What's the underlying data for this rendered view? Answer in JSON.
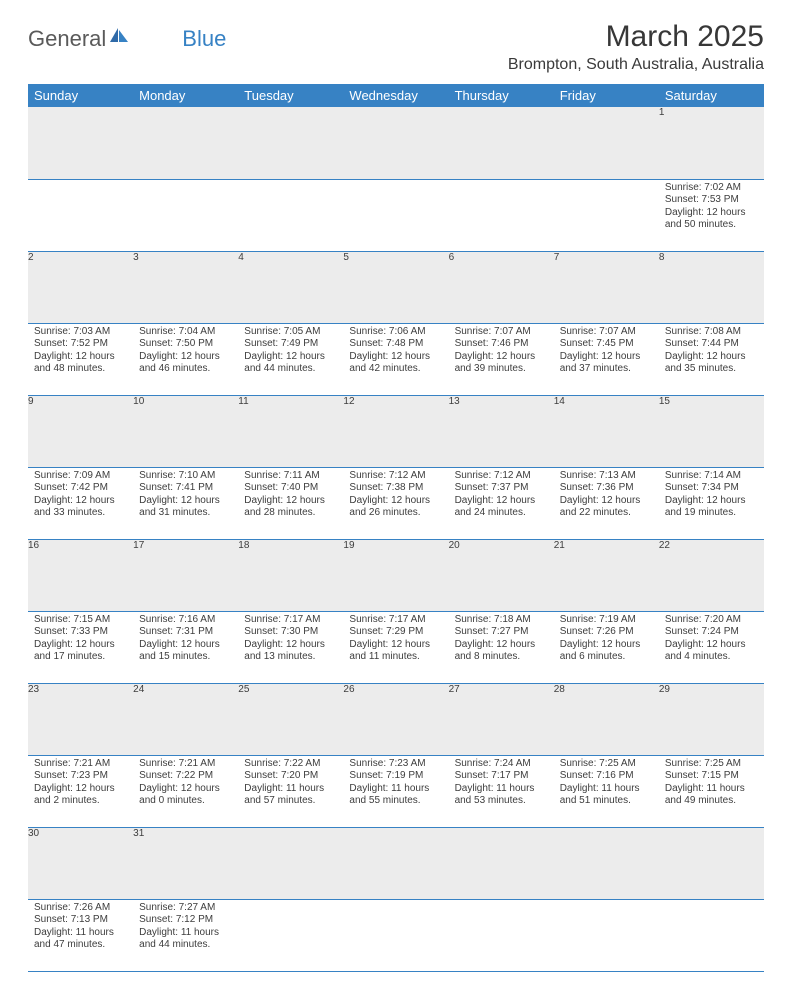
{
  "logo": {
    "part1": "General",
    "part2": "Blue"
  },
  "title": "March 2025",
  "location": "Brompton, South Australia, Australia",
  "colors": {
    "header_bg": "#3782c4",
    "header_text": "#ffffff",
    "daynum_bg": "#ececec",
    "row_border": "#3782c4",
    "text": "#3d3d3d",
    "logo_gray": "#5a5a5a",
    "logo_blue": "#3782c4"
  },
  "fonts": {
    "title_pt": 30,
    "location_pt": 16,
    "dayhdr_pt": 13,
    "daynum_pt": 11,
    "cell_pt": 10
  },
  "day_headers": [
    "Sunday",
    "Monday",
    "Tuesday",
    "Wednesday",
    "Thursday",
    "Friday",
    "Saturday"
  ],
  "weeks": [
    [
      null,
      null,
      null,
      null,
      null,
      null,
      {
        "n": "1",
        "sr": "7:02 AM",
        "ss": "7:53 PM",
        "dl": "12 hours and 50 minutes."
      }
    ],
    [
      {
        "n": "2",
        "sr": "7:03 AM",
        "ss": "7:52 PM",
        "dl": "12 hours and 48 minutes."
      },
      {
        "n": "3",
        "sr": "7:04 AM",
        "ss": "7:50 PM",
        "dl": "12 hours and 46 minutes."
      },
      {
        "n": "4",
        "sr": "7:05 AM",
        "ss": "7:49 PM",
        "dl": "12 hours and 44 minutes."
      },
      {
        "n": "5",
        "sr": "7:06 AM",
        "ss": "7:48 PM",
        "dl": "12 hours and 42 minutes."
      },
      {
        "n": "6",
        "sr": "7:07 AM",
        "ss": "7:46 PM",
        "dl": "12 hours and 39 minutes."
      },
      {
        "n": "7",
        "sr": "7:07 AM",
        "ss": "7:45 PM",
        "dl": "12 hours and 37 minutes."
      },
      {
        "n": "8",
        "sr": "7:08 AM",
        "ss": "7:44 PM",
        "dl": "12 hours and 35 minutes."
      }
    ],
    [
      {
        "n": "9",
        "sr": "7:09 AM",
        "ss": "7:42 PM",
        "dl": "12 hours and 33 minutes."
      },
      {
        "n": "10",
        "sr": "7:10 AM",
        "ss": "7:41 PM",
        "dl": "12 hours and 31 minutes."
      },
      {
        "n": "11",
        "sr": "7:11 AM",
        "ss": "7:40 PM",
        "dl": "12 hours and 28 minutes."
      },
      {
        "n": "12",
        "sr": "7:12 AM",
        "ss": "7:38 PM",
        "dl": "12 hours and 26 minutes."
      },
      {
        "n": "13",
        "sr": "7:12 AM",
        "ss": "7:37 PM",
        "dl": "12 hours and 24 minutes."
      },
      {
        "n": "14",
        "sr": "7:13 AM",
        "ss": "7:36 PM",
        "dl": "12 hours and 22 minutes."
      },
      {
        "n": "15",
        "sr": "7:14 AM",
        "ss": "7:34 PM",
        "dl": "12 hours and 19 minutes."
      }
    ],
    [
      {
        "n": "16",
        "sr": "7:15 AM",
        "ss": "7:33 PM",
        "dl": "12 hours and 17 minutes."
      },
      {
        "n": "17",
        "sr": "7:16 AM",
        "ss": "7:31 PM",
        "dl": "12 hours and 15 minutes."
      },
      {
        "n": "18",
        "sr": "7:17 AM",
        "ss": "7:30 PM",
        "dl": "12 hours and 13 minutes."
      },
      {
        "n": "19",
        "sr": "7:17 AM",
        "ss": "7:29 PM",
        "dl": "12 hours and 11 minutes."
      },
      {
        "n": "20",
        "sr": "7:18 AM",
        "ss": "7:27 PM",
        "dl": "12 hours and 8 minutes."
      },
      {
        "n": "21",
        "sr": "7:19 AM",
        "ss": "7:26 PM",
        "dl": "12 hours and 6 minutes."
      },
      {
        "n": "22",
        "sr": "7:20 AM",
        "ss": "7:24 PM",
        "dl": "12 hours and 4 minutes."
      }
    ],
    [
      {
        "n": "23",
        "sr": "7:21 AM",
        "ss": "7:23 PM",
        "dl": "12 hours and 2 minutes."
      },
      {
        "n": "24",
        "sr": "7:21 AM",
        "ss": "7:22 PM",
        "dl": "12 hours and 0 minutes."
      },
      {
        "n": "25",
        "sr": "7:22 AM",
        "ss": "7:20 PM",
        "dl": "11 hours and 57 minutes."
      },
      {
        "n": "26",
        "sr": "7:23 AM",
        "ss": "7:19 PM",
        "dl": "11 hours and 55 minutes."
      },
      {
        "n": "27",
        "sr": "7:24 AM",
        "ss": "7:17 PM",
        "dl": "11 hours and 53 minutes."
      },
      {
        "n": "28",
        "sr": "7:25 AM",
        "ss": "7:16 PM",
        "dl": "11 hours and 51 minutes."
      },
      {
        "n": "29",
        "sr": "7:25 AM",
        "ss": "7:15 PM",
        "dl": "11 hours and 49 minutes."
      }
    ],
    [
      {
        "n": "30",
        "sr": "7:26 AM",
        "ss": "7:13 PM",
        "dl": "11 hours and 47 minutes."
      },
      {
        "n": "31",
        "sr": "7:27 AM",
        "ss": "7:12 PM",
        "dl": "11 hours and 44 minutes."
      },
      null,
      null,
      null,
      null,
      null
    ]
  ],
  "labels": {
    "sunrise": "Sunrise: ",
    "sunset": "Sunset: ",
    "daylight": "Daylight: "
  }
}
